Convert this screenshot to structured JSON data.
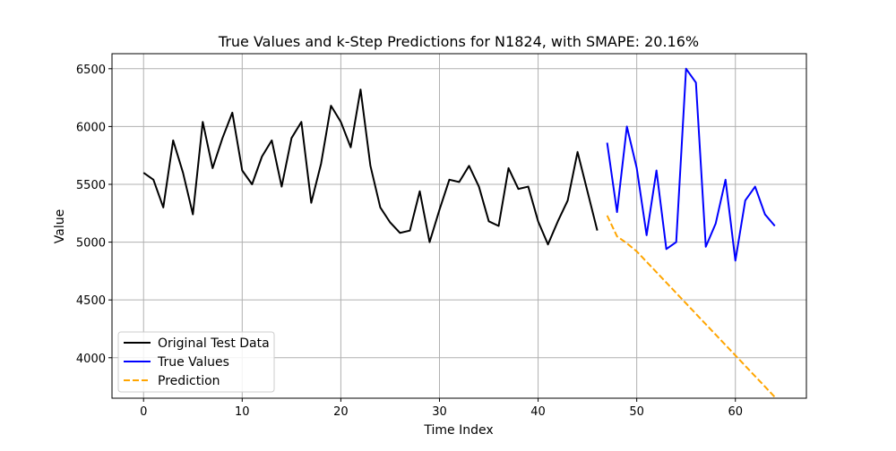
{
  "chart_data": {
    "type": "line",
    "title": "True Values and k-Step Predictions for N1824, with SMAPE: 20.16%",
    "xlabel": "Time Index",
    "ylabel": "Value",
    "xlim": [
      -3.2,
      67.2
    ],
    "ylim": [
      3650,
      6630
    ],
    "xticks": [
      0,
      10,
      20,
      30,
      40,
      50,
      60
    ],
    "yticks": [
      4000,
      4500,
      5000,
      5500,
      6000,
      6500
    ],
    "grid": true,
    "legend_position": "lower-left",
    "series": [
      {
        "name": "Original Test Data",
        "color": "#000000",
        "style": "solid",
        "x": [
          0,
          1,
          2,
          3,
          4,
          5,
          6,
          7,
          8,
          9,
          10,
          11,
          12,
          13,
          14,
          15,
          16,
          17,
          18,
          19,
          20,
          21,
          22,
          23,
          24,
          25,
          26,
          27,
          28,
          29,
          30,
          31,
          32,
          33,
          34,
          35,
          36,
          37,
          38,
          39,
          40,
          41,
          42,
          43,
          44,
          45,
          46
        ],
        "y": [
          5600,
          5540,
          5300,
          5880,
          5600,
          5240,
          6040,
          5640,
          5900,
          6120,
          5620,
          5500,
          5740,
          5880,
          5480,
          5900,
          6040,
          5340,
          5680,
          6180,
          6040,
          5820,
          6320,
          5660,
          5300,
          5170,
          5080,
          5100,
          5440,
          5000,
          5280,
          5540,
          5520,
          5660,
          5480,
          5180,
          5140,
          5640,
          5460,
          5480,
          5180,
          4980,
          5180,
          5360,
          5780,
          5440,
          5100
        ]
      },
      {
        "name": "True Values",
        "color": "#0000ff",
        "style": "solid",
        "x": [
          47,
          48,
          49,
          50,
          51,
          52,
          53,
          54,
          55,
          56,
          57,
          58,
          59,
          60,
          61,
          62,
          63,
          64
        ],
        "y": [
          5860,
          5260,
          6000,
          5640,
          5060,
          5620,
          4940,
          5000,
          6500,
          6380,
          4960,
          5160,
          5540,
          4840,
          5360,
          5480,
          5240,
          5140
        ]
      },
      {
        "name": "Prediction",
        "color": "#ffa500",
        "style": "dashed",
        "x": [
          47,
          48,
          49,
          50,
          51,
          52,
          53,
          54,
          55,
          56,
          57,
          58,
          59,
          60,
          61,
          62,
          63,
          64
        ],
        "y": [
          5230,
          5050,
          4990,
          4920,
          4830,
          4740,
          4650,
          4560,
          4470,
          4380,
          4290,
          4200,
          4110,
          4020,
          3930,
          3840,
          3750,
          3660
        ]
      }
    ]
  }
}
